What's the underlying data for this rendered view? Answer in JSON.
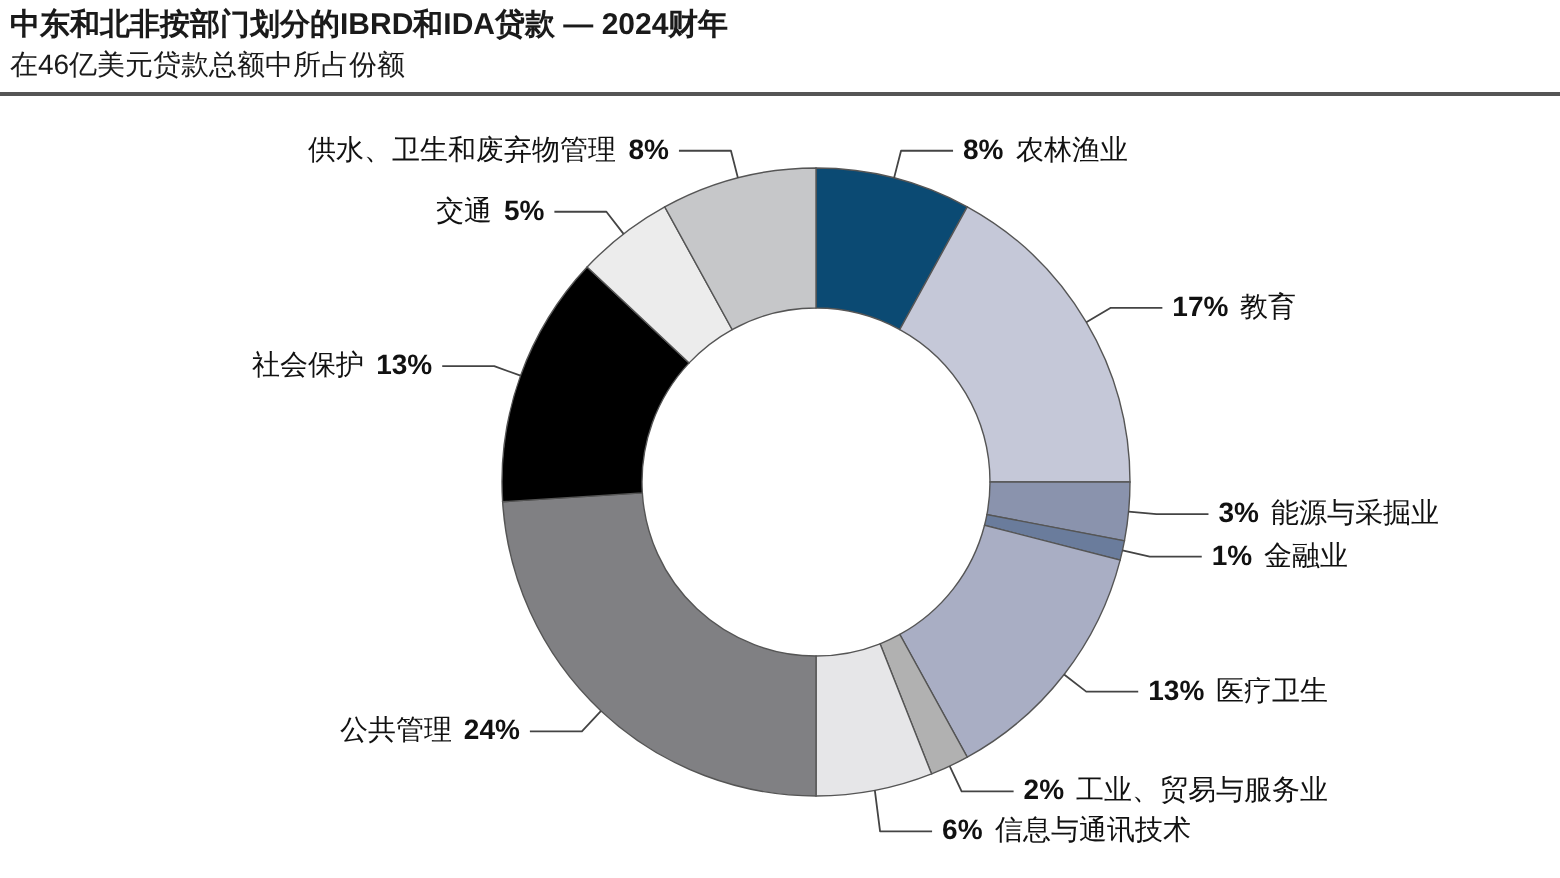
{
  "chart_data": {
    "type": "donut",
    "title": "中东和北非按部门划分的IBRD和IDA贷款 — 2024财年",
    "subtitle": "在46亿美元贷款总额中所占份额",
    "categories": [
      "农林渔业",
      "教育",
      "能源与采掘业",
      "金融业",
      "医疗卫生",
      "工业、贸易与服务业",
      "信息与通讯技术",
      "公共管理",
      "社会保护",
      "交通",
      "供水、卫生和废弃物管理"
    ],
    "values": [
      8,
      17,
      3,
      1,
      13,
      2,
      6,
      24,
      13,
      5,
      8
    ],
    "value_labels": [
      "8%",
      "17%",
      "3%",
      "1%",
      "13%",
      "2%",
      "6%",
      "24%",
      "13%",
      "5%",
      "8%"
    ],
    "colors": [
      "#0b4a73",
      "#c5c8d8",
      "#8a93ad",
      "#6a7c9c",
      "#a9aec4",
      "#b1b1b1",
      "#e6e6e8",
      "#808083",
      "#000000",
      "#ececec",
      "#c6c7c9"
    ]
  }
}
